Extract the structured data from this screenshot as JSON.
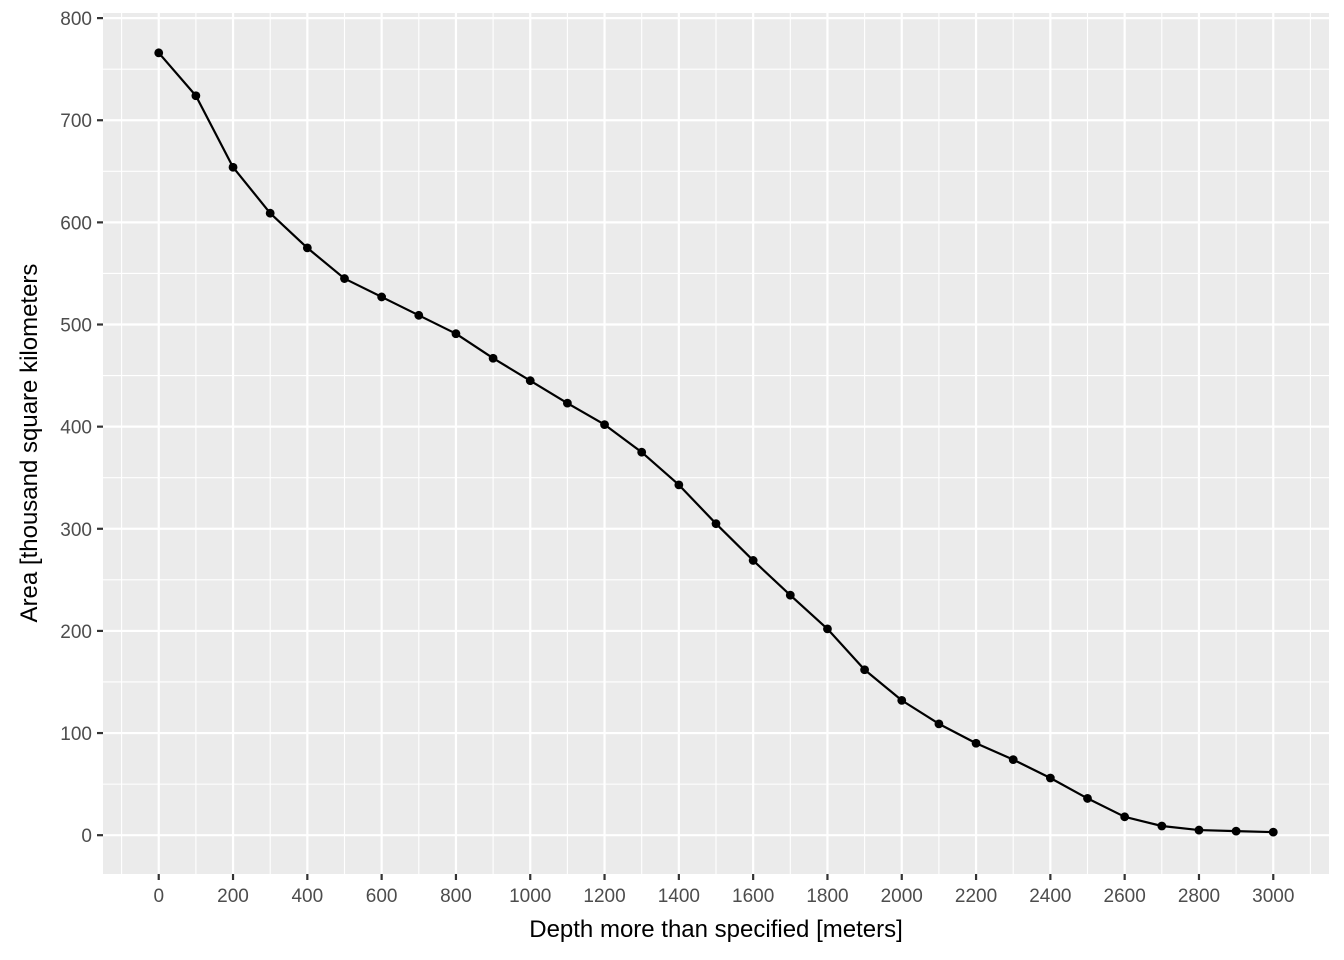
{
  "chart_data": {
    "type": "line",
    "title": "",
    "xlabel": "Depth more than specified [meters]",
    "ylabel": "Area [thousand square kilometers",
    "xlim": [
      -150,
      3150
    ],
    "ylim": [
      -38,
      805
    ],
    "x_ticks": [
      0,
      200,
      400,
      600,
      800,
      1000,
      1200,
      1400,
      1600,
      1800,
      2000,
      2200,
      2400,
      2600,
      2800,
      3000
    ],
    "x_tick_labels": [
      "0",
      "200",
      "400",
      "600",
      "800",
      "1000",
      "1200",
      "1400",
      "1600",
      "1800",
      "2000",
      "2200",
      "2400",
      "2600",
      "2800",
      "3000"
    ],
    "x_minor_ticks": [
      -100,
      100,
      300,
      500,
      700,
      900,
      1100,
      1300,
      1500,
      1700,
      1900,
      2100,
      2300,
      2500,
      2700,
      2900,
      3100
    ],
    "y_ticks": [
      0,
      100,
      200,
      300,
      400,
      500,
      600,
      700,
      800
    ],
    "y_tick_labels": [
      "0",
      "100",
      "200",
      "300",
      "400",
      "500",
      "600",
      "700",
      "800"
    ],
    "y_minor_ticks": [
      50,
      150,
      250,
      350,
      450,
      550,
      650,
      750
    ],
    "grid": true,
    "legend": "none",
    "background": "#EBEBEB",
    "series_color": "#000000",
    "x": [
      0,
      100,
      200,
      300,
      400,
      500,
      600,
      700,
      800,
      900,
      1000,
      1100,
      1200,
      1300,
      1400,
      1500,
      1600,
      1700,
      1800,
      1900,
      2000,
      2100,
      2200,
      2300,
      2400,
      2500,
      2600,
      2700,
      2800,
      2900,
      3000
    ],
    "series": [
      {
        "values": [
          766,
          724,
          654,
          609,
          575,
          545,
          527,
          509,
          491,
          467,
          445,
          423,
          402,
          375,
          343,
          305,
          269,
          235,
          202,
          162,
          132,
          109,
          90,
          74,
          56,
          36,
          18,
          9,
          5,
          4,
          3
        ]
      }
    ]
  }
}
